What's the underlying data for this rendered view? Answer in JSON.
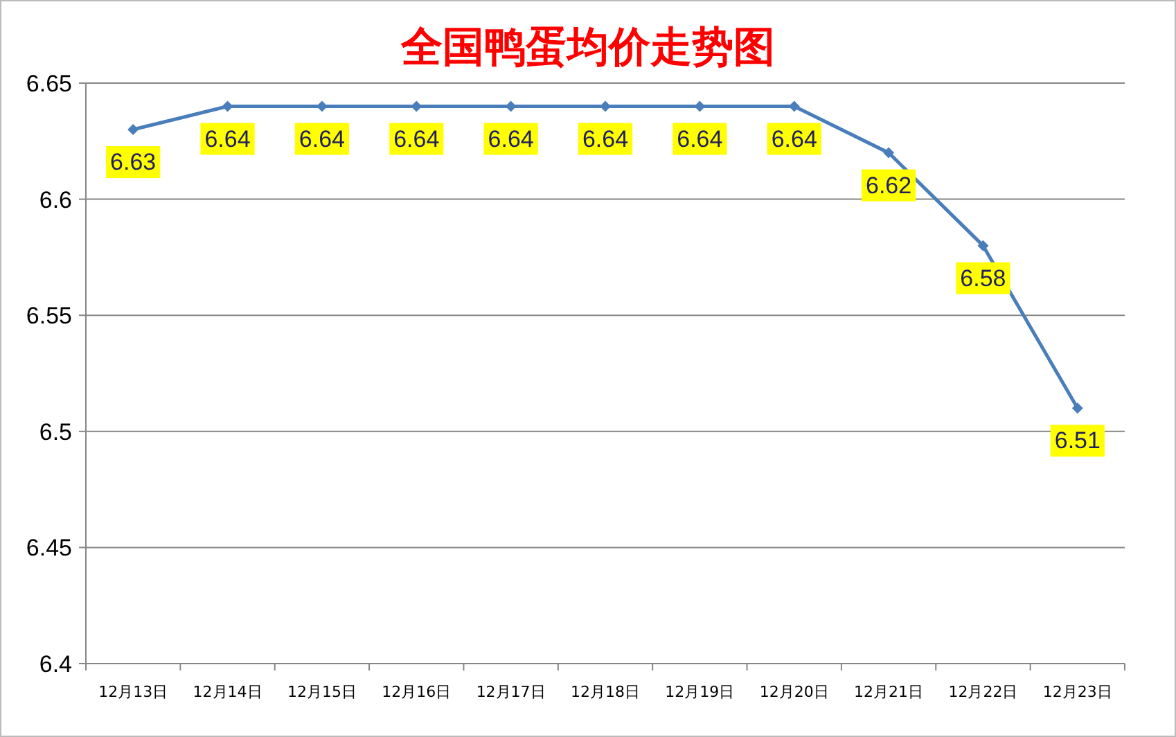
{
  "chart_data": {
    "type": "line",
    "title": "全国鸭蛋均价走势图",
    "categories": [
      "12月13日",
      "12月14日",
      "12月15日",
      "12月16日",
      "12月17日",
      "12月18日",
      "12月19日",
      "12月20日",
      "12月21日",
      "12月22日",
      "12月23日"
    ],
    "series": [
      {
        "color": "#4a7ebb",
        "values": [
          6.63,
          6.64,
          6.64,
          6.64,
          6.64,
          6.64,
          6.64,
          6.64,
          6.62,
          6.58,
          6.51
        ]
      }
    ],
    "ylim": [
      6.4,
      6.65
    ],
    "yticks": [
      6.4,
      6.45,
      6.5,
      6.55,
      6.6,
      6.65
    ],
    "grid": "y",
    "marker": "diamond",
    "line_style": "solid",
    "data_labels": true
  }
}
